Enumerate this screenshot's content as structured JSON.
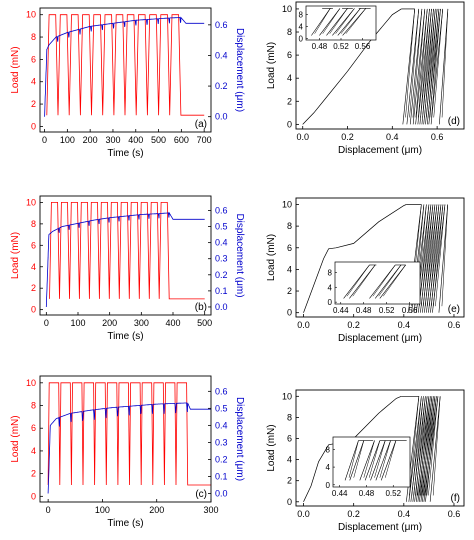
{
  "chart_data": [
    {
      "type": "line",
      "panel": "(a)",
      "xlabel": "Time (s)",
      "ylabel_left": "Load (mN)",
      "ylabel_right": "Displacement (μm)",
      "xlim": [
        -20,
        730
      ],
      "ylim_left": [
        -0.5,
        10.6
      ],
      "ylim_right": [
        -0.1,
        0.71
      ],
      "xticks": [
        0,
        100,
        200,
        300,
        400,
        500,
        600,
        700
      ],
      "yticks_left": [
        0,
        2,
        4,
        6,
        8,
        10
      ],
      "yticks_right": [
        0.0,
        0.2,
        0.4,
        0.6
      ],
      "grid": false,
      "colors": {
        "load": "#ff0000",
        "displacement": "#0000cc"
      },
      "load_cycles": {
        "cycles": 12,
        "t_start": 10,
        "t_end": 598,
        "rise_duration": 10,
        "peak": 10.0,
        "trough": 1.0,
        "final": 1.0,
        "t_end_axis": 700
      },
      "displacement": [
        [
          0,
          0.0
        ],
        [
          10,
          0.44
        ],
        [
          20,
          0.47
        ],
        [
          50,
          0.52
        ],
        [
          100,
          0.55
        ],
        [
          150,
          0.57
        ],
        [
          200,
          0.59
        ],
        [
          250,
          0.6
        ],
        [
          300,
          0.61
        ],
        [
          350,
          0.62
        ],
        [
          400,
          0.63
        ],
        [
          450,
          0.635
        ],
        [
          500,
          0.64
        ],
        [
          550,
          0.645
        ],
        [
          598,
          0.648
        ],
        [
          620,
          0.61
        ],
        [
          700,
          0.61
        ]
      ],
      "displacement_dip": 0.035
    },
    {
      "type": "line",
      "panel": "(b)",
      "xlabel": "Time (s)",
      "ylabel_left": "Load (mN)",
      "ylabel_right": "Displacement (μm)",
      "xlim": [
        -20,
        520
      ],
      "ylim_left": [
        -0.5,
        10.6
      ],
      "ylim_right": [
        -0.05,
        0.69
      ],
      "xticks": [
        0,
        100,
        200,
        300,
        400,
        500
      ],
      "yticks_left": [
        0,
        2,
        4,
        6,
        8,
        10
      ],
      "yticks_right": [
        0.0,
        0.1,
        0.2,
        0.3,
        0.4,
        0.5,
        0.6
      ],
      "grid": false,
      "colors": {
        "load": "#ff0000",
        "displacement": "#0000cc"
      },
      "load_cycles": {
        "cycles": 12,
        "t_start": 10,
        "t_end": 388,
        "rise_duration": 6,
        "peak": 10.0,
        "trough": 1.0,
        "final": 1.0,
        "t_end_axis": 500
      },
      "displacement": [
        [
          0,
          0.0
        ],
        [
          8,
          0.45
        ],
        [
          20,
          0.47
        ],
        [
          50,
          0.5
        ],
        [
          100,
          0.52
        ],
        [
          150,
          0.54
        ],
        [
          200,
          0.555
        ],
        [
          250,
          0.565
        ],
        [
          300,
          0.575
        ],
        [
          350,
          0.58
        ],
        [
          388,
          0.585
        ],
        [
          400,
          0.545
        ],
        [
          500,
          0.545
        ]
      ],
      "displacement_dip": 0.03
    },
    {
      "type": "line",
      "panel": "(c)",
      "xlabel": "Time (s)",
      "ylabel_left": "Load (mN)",
      "ylabel_right": "Displacement (μm)",
      "xlim": [
        -15,
        300
      ],
      "ylim_left": [
        -0.5,
        10.6
      ],
      "ylim_right": [
        -0.05,
        0.69
      ],
      "xticks": [
        0,
        100,
        200,
        300
      ],
      "yticks_left": [
        0,
        2,
        4,
        6,
        8,
        10
      ],
      "yticks_right": [
        0.0,
        0.1,
        0.2,
        0.3,
        0.4,
        0.5,
        0.6
      ],
      "grid": false,
      "colors": {
        "load": "#ff0000",
        "displacement": "#0000cc"
      },
      "load_cycles": {
        "cycles": 12,
        "t_start": 0,
        "t_end": 257,
        "rise_duration": 2,
        "peak": 10.0,
        "trough": 1.0,
        "final": 1.0,
        "t_end_axis": 300
      },
      "displacement": [
        [
          0,
          0.0
        ],
        [
          4,
          0.4
        ],
        [
          15,
          0.44
        ],
        [
          40,
          0.47
        ],
        [
          80,
          0.49
        ],
        [
          120,
          0.505
        ],
        [
          160,
          0.515
        ],
        [
          200,
          0.525
        ],
        [
          240,
          0.53
        ],
        [
          257,
          0.532
        ],
        [
          262,
          0.495
        ],
        [
          300,
          0.495
        ]
      ],
      "displacement_dip": 0.06
    },
    {
      "type": "line",
      "panel": "(d)",
      "xlabel": "Displacement (μm)",
      "ylabel": "Load (mN)",
      "xlim": [
        -0.03,
        0.72
      ],
      "ylim": [
        -0.4,
        10.6
      ],
      "xticks": [
        0.0,
        0.2,
        0.4,
        0.6
      ],
      "yticks": [
        0,
        2,
        4,
        6,
        8,
        10
      ],
      "grid": false,
      "loading_curve": [
        [
          0.0,
          0.0
        ],
        [
          0.05,
          1.0
        ],
        [
          0.1,
          2.2
        ],
        [
          0.2,
          4.6
        ],
        [
          0.3,
          7.2
        ],
        [
          0.4,
          9.5
        ],
        [
          0.44,
          10.0
        ]
      ],
      "hold_segment": [
        0.44,
        0.5
      ],
      "reload_lines": [
        {
          "x_at_peak": 0.5,
          "x_at_trough": 0.447
        },
        {
          "x_at_peak": 0.518,
          "x_at_trough": 0.465
        },
        {
          "x_at_peak": 0.532,
          "x_at_trough": 0.48
        },
        {
          "x_at_peak": 0.545,
          "x_at_trough": 0.493
        },
        {
          "x_at_peak": 0.556,
          "x_at_trough": 0.504
        },
        {
          "x_at_peak": 0.566,
          "x_at_trough": 0.514
        },
        {
          "x_at_peak": 0.575,
          "x_at_trough": 0.523
        },
        {
          "x_at_peak": 0.584,
          "x_at_trough": 0.532
        },
        {
          "x_at_peak": 0.592,
          "x_at_trough": 0.54
        },
        {
          "x_at_peak": 0.6,
          "x_at_trough": 0.548
        },
        {
          "x_at_peak": 0.608,
          "x_at_trough": 0.556
        },
        {
          "x_at_peak": 0.615,
          "x_at_trough": 0.563
        },
        {
          "x_at_peak": 0.625,
          "x_at_trough": 0.573
        },
        {
          "x_at_peak": 0.648,
          "x_at_trough": 0.61
        }
      ],
      "inset": {
        "xlim": [
          0.455,
          0.585
        ],
        "ylim": [
          -0.5,
          10.8
        ],
        "xticks": [
          0.48,
          0.52,
          0.56
        ],
        "yticks": [
          0,
          4,
          8
        ],
        "tick_format_x": "0.00",
        "lines": [
          [
            0.465,
            1.0,
            0.5,
            10.0
          ],
          [
            0.48,
            1.0,
            0.518,
            10.0
          ],
          [
            0.493,
            1.0,
            0.532,
            10.0
          ],
          [
            0.504,
            1.0,
            0.545,
            10.0
          ],
          [
            0.514,
            1.0,
            0.556,
            10.0
          ],
          [
            0.523,
            1.0,
            0.566,
            10.0
          ]
        ],
        "hold_segments": [
          [
            0.485,
            0.505
          ],
          [
            0.522,
            0.542
          ],
          [
            0.553,
            0.575
          ]
        ]
      }
    },
    {
      "type": "line",
      "panel": "(e)",
      "xlabel": "Displacement (μm)",
      "ylabel": "Load (mN)",
      "xlim": [
        -0.03,
        0.64
      ],
      "ylim": [
        -0.4,
        10.6
      ],
      "xticks": [
        0.0,
        0.2,
        0.4,
        0.6
      ],
      "yticks": [
        0,
        2,
        4,
        6,
        8,
        10
      ],
      "grid": false,
      "loading_curve": [
        [
          0.0,
          0.0
        ],
        [
          0.04,
          2.5
        ],
        [
          0.08,
          5.0
        ],
        [
          0.1,
          5.9
        ],
        [
          0.13,
          6.0
        ],
        [
          0.2,
          6.4
        ],
        [
          0.3,
          8.4
        ],
        [
          0.4,
          9.9
        ],
        [
          0.41,
          10.0
        ]
      ],
      "hold_segment": [
        0.41,
        0.47
      ],
      "reload_lines": [
        {
          "x_at_peak": 0.47,
          "x_at_trough": 0.418
        },
        {
          "x_at_peak": 0.48,
          "x_at_trough": 0.431
        },
        {
          "x_at_peak": 0.49,
          "x_at_trough": 0.441
        },
        {
          "x_at_peak": 0.5,
          "x_at_trough": 0.45
        },
        {
          "x_at_peak": 0.508,
          "x_at_trough": 0.458
        },
        {
          "x_at_peak": 0.516,
          "x_at_trough": 0.466
        },
        {
          "x_at_peak": 0.524,
          "x_at_trough": 0.474
        },
        {
          "x_at_peak": 0.532,
          "x_at_trough": 0.482
        },
        {
          "x_at_peak": 0.54,
          "x_at_trough": 0.49
        },
        {
          "x_at_peak": 0.548,
          "x_at_trough": 0.498
        },
        {
          "x_at_peak": 0.556,
          "x_at_trough": 0.506
        },
        {
          "x_at_peak": 0.564,
          "x_at_trough": 0.514
        },
        {
          "x_at_peak": 0.575,
          "x_at_trough": 0.54
        }
      ],
      "inset": {
        "xlim": [
          0.43,
          0.578
        ],
        "ylim": [
          -0.5,
          10.8
        ],
        "xticks": [
          0.44,
          0.48,
          0.52,
          0.56
        ],
        "yticks": [
          0,
          4,
          8
        ],
        "tick_format_x": "0.00",
        "lines": [
          [
            0.445,
            1.0,
            0.49,
            10.0
          ],
          [
            0.455,
            1.0,
            0.5,
            10.0
          ],
          [
            0.49,
            1.0,
            0.535,
            10.0
          ],
          [
            0.5,
            1.0,
            0.545,
            10.0
          ],
          [
            0.508,
            1.0,
            0.553,
            10.0
          ]
        ],
        "hold_segments": [
          [
            0.49,
            0.502
          ],
          [
            0.535,
            0.553
          ]
        ]
      }
    },
    {
      "type": "line",
      "panel": "(f)",
      "xlabel": "Displacement (μm)",
      "ylabel": "Load (mN)",
      "xlim": [
        -0.03,
        0.64
      ],
      "ylim": [
        -0.4,
        10.6
      ],
      "xticks": [
        0.0,
        0.2,
        0.4,
        0.6
      ],
      "yticks": [
        0,
        2,
        4,
        6,
        8,
        10
      ],
      "grid": false,
      "loading_curve": [
        [
          0.0,
          0.0
        ],
        [
          0.03,
          1.5
        ],
        [
          0.06,
          3.8
        ],
        [
          0.1,
          5.4
        ],
        [
          0.12,
          5.5
        ],
        [
          0.2,
          6.0
        ],
        [
          0.3,
          8.4
        ],
        [
          0.37,
          9.8
        ],
        [
          0.39,
          10.0
        ]
      ],
      "hold_segment": [
        0.39,
        0.46
      ],
      "reload_lines": [
        {
          "x_at_peak": 0.46,
          "x_at_trough": 0.41
        },
        {
          "x_at_peak": 0.47,
          "x_at_trough": 0.42
        },
        {
          "x_at_peak": 0.478,
          "x_at_trough": 0.428
        },
        {
          "x_at_peak": 0.486,
          "x_at_trough": 0.436
        },
        {
          "x_at_peak": 0.493,
          "x_at_trough": 0.443
        },
        {
          "x_at_peak": 0.5,
          "x_at_trough": 0.45
        },
        {
          "x_at_peak": 0.506,
          "x_at_trough": 0.456
        },
        {
          "x_at_peak": 0.512,
          "x_at_trough": 0.462
        },
        {
          "x_at_peak": 0.518,
          "x_at_trough": 0.468
        },
        {
          "x_at_peak": 0.524,
          "x_at_trough": 0.474
        },
        {
          "x_at_peak": 0.53,
          "x_at_trough": 0.48
        },
        {
          "x_at_peak": 0.536,
          "x_at_trough": 0.486
        },
        {
          "x_at_peak": 0.545,
          "x_at_trough": 0.505
        }
      ],
      "inset": {
        "xlim": [
          0.43,
          0.545
        ],
        "ylim": [
          -0.5,
          10.8
        ],
        "xticks": [
          0.44,
          0.48,
          0.52
        ],
        "yticks": [
          0,
          4,
          8
        ],
        "tick_format_x": "0.00",
        "lines": [
          [
            0.448,
            1.0,
            0.468,
            10.0
          ],
          [
            0.455,
            1.0,
            0.476,
            10.0
          ],
          [
            0.47,
            1.0,
            0.492,
            10.0
          ],
          [
            0.478,
            1.0,
            0.5,
            10.0
          ],
          [
            0.486,
            1.0,
            0.508,
            10.0
          ],
          [
            0.494,
            1.0,
            0.516,
            10.0
          ],
          [
            0.502,
            1.0,
            0.524,
            10.0
          ]
        ],
        "hold_segments": [
          [
            0.468,
            0.49
          ],
          [
            0.5,
            0.52
          ],
          [
            0.52,
            0.54
          ]
        ]
      }
    }
  ]
}
